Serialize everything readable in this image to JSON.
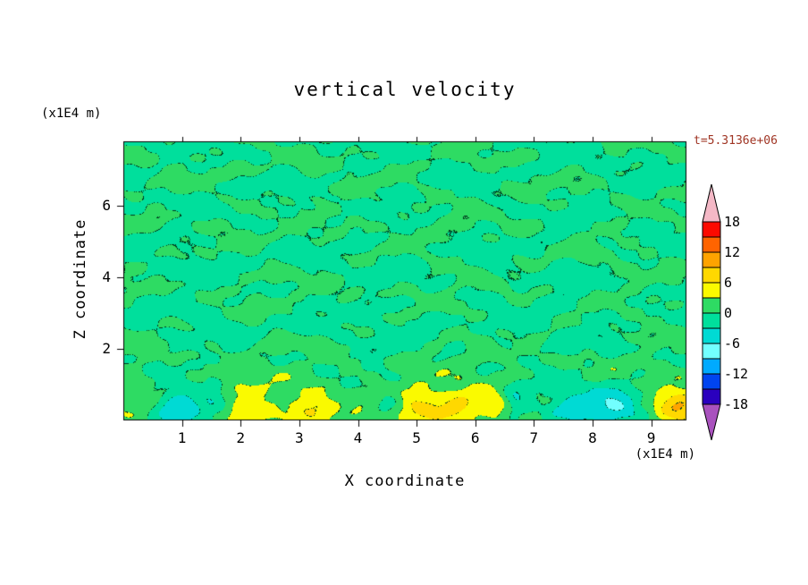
{
  "figure": {
    "background": "#FFFFFF"
  },
  "chart_data": {
    "type": "contour",
    "title": "vertical velocity",
    "timestamp": "t=5.3136e+06",
    "timestamp_color": "#A03524",
    "xlabel": "X coordinate",
    "ylabel": "Z coordinate",
    "x_unit_label": "(x1E4 m)",
    "y_unit_label": "(x1E4 m)",
    "xlim": [
      0,
      9.6
    ],
    "ylim": [
      0,
      7.8
    ],
    "x_ticks": [
      1,
      2,
      3,
      4,
      5,
      6,
      7,
      8,
      9
    ],
    "y_ticks": [
      2,
      4,
      6
    ],
    "contour_interval": 3,
    "colorbar": {
      "tick_labels": [
        "18",
        "12",
        "6",
        "0",
        "-6",
        "-12",
        "-18"
      ],
      "tick_values": [
        18,
        12,
        6,
        0,
        -6,
        -12,
        -18
      ],
      "over_color": "#F4B8C6",
      "under_color": "#A952BE",
      "levels": [
        {
          "min": 15,
          "max": 18,
          "color": "#FC0A00"
        },
        {
          "min": 12,
          "max": 15,
          "color": "#FF6400"
        },
        {
          "min": 9,
          "max": 12,
          "color": "#FFA300"
        },
        {
          "min": 6,
          "max": 9,
          "color": "#FFD800"
        },
        {
          "min": 3,
          "max": 6,
          "color": "#FAFA00"
        },
        {
          "min": 0,
          "max": 3,
          "color": "#2EDB63"
        },
        {
          "min": -3,
          "max": 0,
          "color": "#00DF9C"
        },
        {
          "min": -6,
          "max": -3,
          "color": "#00DAD4"
        },
        {
          "min": -9,
          "max": -6,
          "color": "#72FFFF"
        },
        {
          "min": -12,
          "max": -9,
          "color": "#00AAFF"
        },
        {
          "min": -15,
          "max": -12,
          "color": "#0044F0"
        },
        {
          "min": -18,
          "max": -15,
          "color": "#2A00BE"
        }
      ]
    },
    "field": {
      "description": "Turbulent vertical-velocity cross-section: weakly mottled values near 0 (alternating -3..0 and 0..3 greens) over most of the domain, with stronger plumes along the lower boundary: cyan downdraft cells (-3..-9) and yellow updraft cells (+3..+9).",
      "bottom_band_amplitude": 1.6,
      "blobs": [
        {
          "x": 0.95,
          "y": 0.35,
          "w": 0.42,
          "h": 0.55,
          "a": -7.5
        },
        {
          "x": 1.55,
          "y": 0.55,
          "w": 0.25,
          "h": 0.5,
          "a": -3.5
        },
        {
          "x": 2.15,
          "y": 0.4,
          "w": 0.45,
          "h": 0.55,
          "a": 5.2
        },
        {
          "x": 3.25,
          "y": 0.35,
          "w": 0.32,
          "h": 0.5,
          "a": 4.6
        },
        {
          "x": 4.55,
          "y": 0.5,
          "w": 0.28,
          "h": 0.45,
          "a": -5.2
        },
        {
          "x": 5.0,
          "y": 0.38,
          "w": 0.65,
          "h": 0.6,
          "a": 6.2
        },
        {
          "x": 5.75,
          "y": 0.45,
          "w": 0.3,
          "h": 0.5,
          "a": 4.2
        },
        {
          "x": 6.35,
          "y": 0.5,
          "w": 0.22,
          "h": 0.45,
          "a": 4.0
        },
        {
          "x": 6.7,
          "y": 0.45,
          "w": 0.28,
          "h": 0.5,
          "a": -4.6
        },
        {
          "x": 7.7,
          "y": 0.4,
          "w": 0.5,
          "h": 0.55,
          "a": -5.0
        },
        {
          "x": 8.4,
          "y": 0.38,
          "w": 0.42,
          "h": 0.55,
          "a": -6.5
        },
        {
          "x": 9.45,
          "y": 0.4,
          "w": 0.38,
          "h": 0.55,
          "a": 6.8
        }
      ]
    }
  }
}
